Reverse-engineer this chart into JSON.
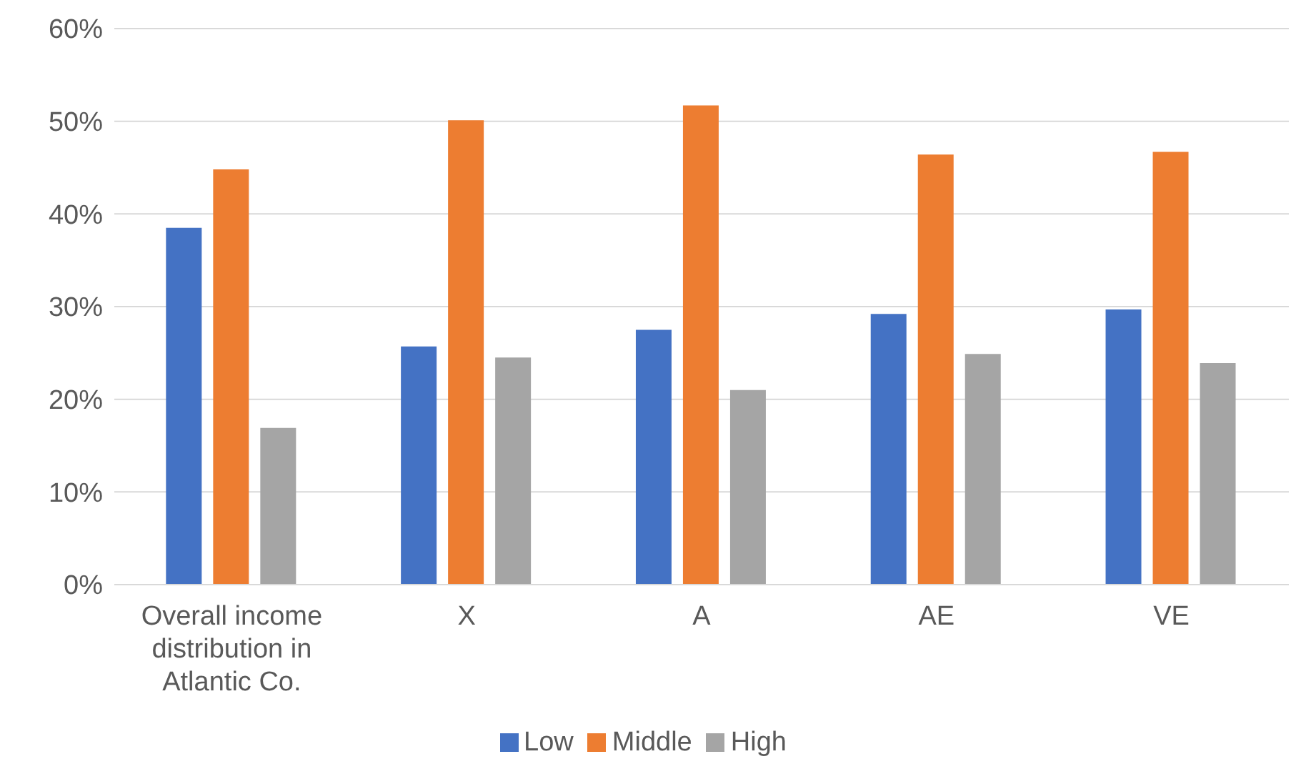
{
  "chart_data": {
    "type": "bar",
    "categories": [
      "Overall income distribution in Atlantic Co.",
      "X",
      "A",
      "AE",
      "VE"
    ],
    "series": [
      {
        "name": "Low",
        "color": "#4472c4",
        "values": [
          38.5,
          25.7,
          27.5,
          29.2,
          29.7
        ]
      },
      {
        "name": "Middle",
        "color": "#ed7d31",
        "values": [
          44.8,
          50.1,
          51.7,
          46.4,
          46.7
        ]
      },
      {
        "name": "High",
        "color": "#a5a5a5",
        "values": [
          16.9,
          24.5,
          21.0,
          24.9,
          23.9
        ]
      }
    ],
    "ylim": [
      0,
      60
    ],
    "yticks": [
      {
        "value": 0,
        "label": "0%"
      },
      {
        "value": 10,
        "label": "10%"
      },
      {
        "value": 20,
        "label": "20%"
      },
      {
        "value": 30,
        "label": "30%"
      },
      {
        "value": 40,
        "label": "40%"
      },
      {
        "value": 50,
        "label": "50%"
      },
      {
        "value": 60,
        "label": "60%"
      }
    ],
    "grid": "y",
    "legend": "bottom"
  }
}
